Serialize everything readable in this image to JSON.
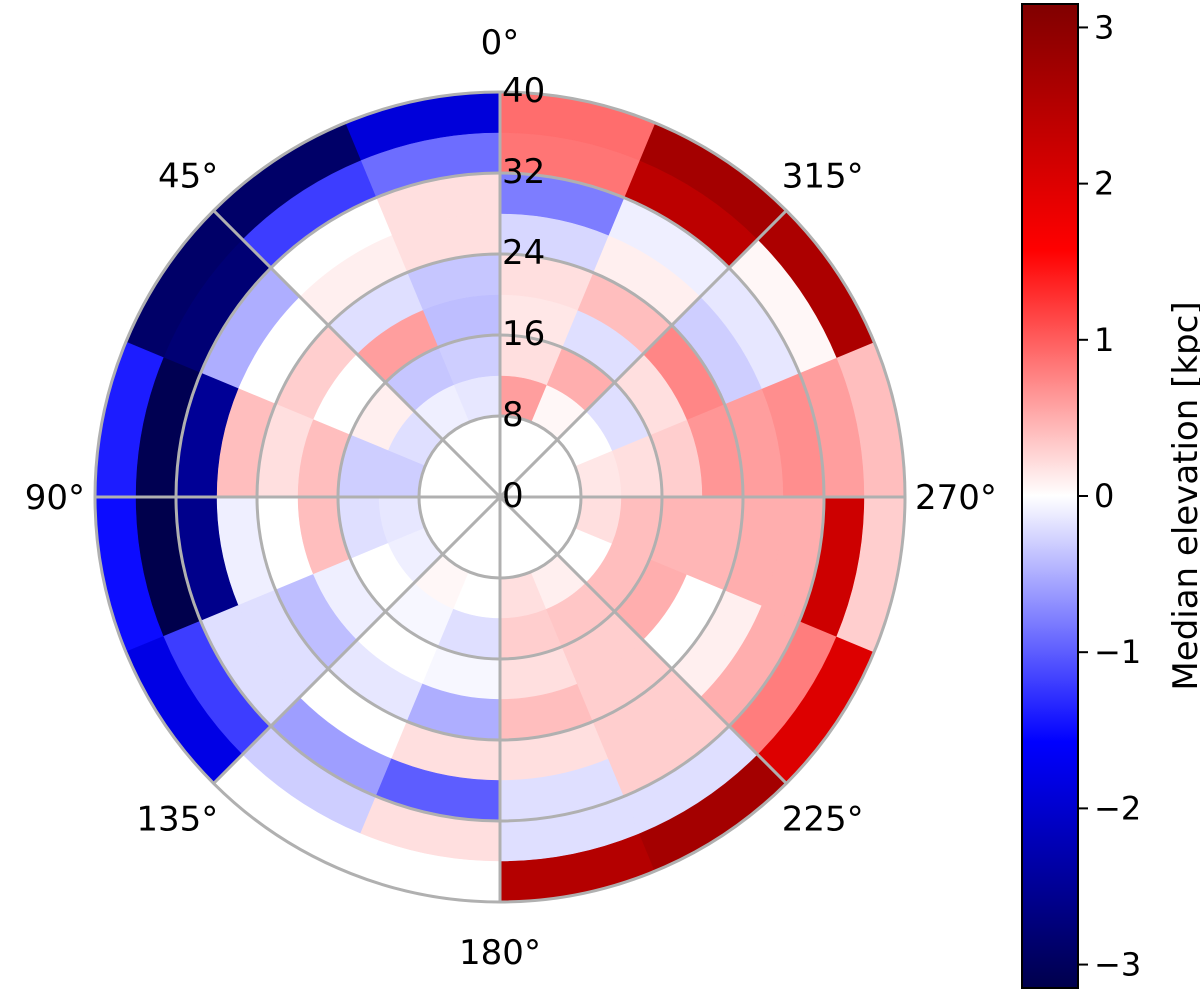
{
  "chart_data": {
    "type": "heatmap",
    "projection": "polar",
    "theta_zero_location": "top",
    "theta_direction": "counterclockwise",
    "theta_unit": "degrees",
    "r_edges": [
      0,
      8,
      12,
      16,
      20,
      24,
      28,
      32,
      36,
      40
    ],
    "theta_edges": [
      0,
      22.5,
      45,
      67.5,
      90,
      112.5,
      135,
      157.5,
      180,
      202.5,
      225,
      247.5,
      270,
      292.5,
      315,
      337.5,
      360
    ],
    "values": [
      [
        0.0,
        0.0,
        0.0,
        0.0,
        0.0,
        0.0,
        0.0,
        0.0,
        0.0,
        0.0,
        0.0,
        0.0,
        0.0,
        0.0,
        0.0,
        0.0
      ],
      [
        -0.15,
        -0.1,
        -0.2,
        -0.3,
        -0.15,
        -0.1,
        0.05,
        0.0,
        0.2,
        0.1,
        0.0,
        0.2,
        0.15,
        0.0,
        0.05,
        0.6
      ],
      [
        -0.3,
        -0.35,
        0.1,
        -0.3,
        -0.2,
        0.0,
        -0.05,
        -0.2,
        0.3,
        0.35,
        0.4,
        0.4,
        0.2,
        -0.2,
        0.5,
        0.2
      ],
      [
        -0.4,
        0.6,
        0.0,
        0.4,
        0.4,
        -0.1,
        0.0,
        -0.05,
        0.2,
        0.3,
        0.5,
        0.45,
        0.3,
        0.2,
        -0.2,
        0.15
      ],
      [
        -0.35,
        -0.2,
        0.3,
        0.2,
        0.0,
        -0.4,
        -0.15,
        -0.5,
        0.4,
        0.3,
        0.0,
        0.45,
        0.65,
        0.75,
        0.4,
        0.2
      ],
      [
        0.2,
        0.1,
        0.0,
        0.4,
        -0.1,
        -0.2,
        0.0,
        0.2,
        0.2,
        0.3,
        0.1,
        0.5,
        0.6,
        -0.3,
        0.1,
        -0.25
      ],
      [
        0.2,
        0.0,
        -0.5,
        -2.5,
        -2.6,
        -0.2,
        -0.6,
        -1.0,
        -0.2,
        0.3,
        0.5,
        0.5,
        0.7,
        -0.15,
        -0.1,
        -0.8
      ],
      [
        -0.9,
        -1.2,
        -2.8,
        -3.1,
        -3.2,
        -1.2,
        -0.3,
        0.2,
        -0.2,
        -0.2,
        0.8,
        2.2,
        0.6,
        0.05,
        2.4,
        0.85
      ],
      [
        -1.9,
        -2.9,
        -2.9,
        -1.4,
        -1.5,
        -1.8,
        0.0,
        0.0,
        2.5,
        2.7,
        2.0,
        0.3,
        0.4,
        2.6,
        2.7,
        0.9
      ]
    ],
    "radial_ticks": [
      0,
      8,
      16,
      24,
      32,
      40
    ],
    "radial_tick_labels": [
      "0",
      "8",
      "16",
      "24",
      "32",
      "40"
    ],
    "angle_ticks": [
      0,
      45,
      90,
      135,
      180,
      225,
      270,
      315
    ],
    "angle_tick_labels": [
      "0°",
      "45°",
      "90°",
      "135°",
      "180°",
      "225°",
      "270°",
      "315°"
    ],
    "rlim": [
      0,
      40
    ],
    "grid": true,
    "colormap": "seismic",
    "colormap_stops": [
      "#00004c",
      "#0000ff",
      "#ffffff",
      "#ff0000",
      "#800000"
    ],
    "colorbar": {
      "label": "Median elevation [kpc]",
      "range": [
        -3.15,
        3.15
      ],
      "ticks": [
        3,
        2,
        1,
        0,
        -1,
        -2,
        -3
      ],
      "tick_labels": [
        "3",
        "2",
        "1",
        "0",
        "−1",
        "−2",
        "−3"
      ],
      "placement": "right"
    },
    "grid_color": "#b0b0b0"
  }
}
